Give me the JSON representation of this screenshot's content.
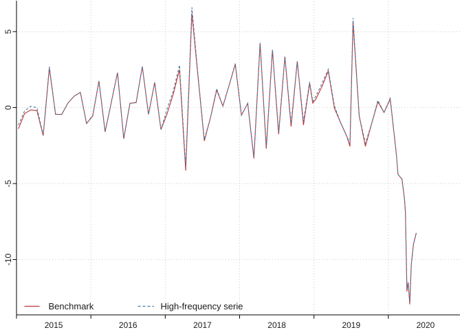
{
  "figure": {
    "background": "#ffffff",
    "title": ""
  },
  "chart_data": {
    "type": "line",
    "title": "",
    "xlabel": "",
    "ylabel": "",
    "grid": "dotted",
    "grid_color": "#c6c6c6",
    "axis_color": "#000000",
    "xlim": [
      2015,
      2020.99
    ],
    "ylim": [
      -13.64,
      7.08
    ],
    "x_start_year": 2015,
    "x_month_offset": 0.3,
    "x_ticks": [
      2015,
      2016,
      2017,
      2018,
      2019,
      2020
    ],
    "x_tick_labels": [
      "2015",
      "2016",
      "2017",
      "2018",
      "2019",
      "2020"
    ],
    "x_label_position": "mid-year",
    "y_ticks": [
      5,
      0,
      -5,
      -10
    ],
    "y_tick_labels": [
      "5",
      "0",
      "-5",
      "-10"
    ],
    "legend_position": "bottom",
    "series": [
      {
        "name": "Benchmark",
        "color": "#c03333",
        "style": "solid",
        "frequency": "monthly",
        "start": "2015-01",
        "points": [
          [
            0,
            -1.4
          ],
          [
            1,
            -0.4
          ],
          [
            2,
            -0.15
          ],
          [
            3,
            -0.2
          ],
          [
            4,
            -1.85
          ],
          [
            5,
            2.6
          ],
          [
            6,
            -0.45
          ],
          [
            7,
            -0.45
          ],
          [
            8,
            0.3
          ],
          [
            9,
            0.75
          ],
          [
            10,
            1.0
          ],
          [
            11,
            -1.05
          ],
          [
            12,
            -0.55
          ],
          [
            13,
            1.75
          ],
          [
            14,
            -1.6
          ],
          [
            15,
            0.35
          ],
          [
            16,
            2.3
          ],
          [
            17,
            -2.05
          ],
          [
            18,
            0.28
          ],
          [
            19,
            0.33
          ],
          [
            20,
            2.7
          ],
          [
            21,
            -0.45
          ],
          [
            22,
            1.65
          ],
          [
            23,
            -1.45
          ],
          [
            24,
            -0.4
          ],
          [
            25,
            0.9
          ],
          [
            26,
            2.5
          ],
          [
            27,
            -4.15
          ],
          [
            28,
            6.2
          ],
          [
            29,
            2.0
          ],
          [
            30,
            -2.2
          ],
          [
            31,
            -0.65
          ],
          [
            32,
            1.15
          ],
          [
            33,
            0.1
          ],
          [
            34,
            1.45
          ],
          [
            35,
            2.85
          ],
          [
            36,
            -0.5
          ],
          [
            37,
            0.28
          ],
          [
            38,
            -3.35
          ],
          [
            39,
            4.25
          ],
          [
            40,
            -2.7
          ],
          [
            41,
            3.8
          ],
          [
            42,
            -1.75
          ],
          [
            43,
            3.35
          ],
          [
            44,
            -1.25
          ],
          [
            45,
            3.05
          ],
          [
            46,
            -1.15
          ],
          [
            47,
            1.6
          ],
          [
            47.5,
            0.3
          ],
          [
            48,
            0.55
          ],
          [
            49,
            1.4
          ],
          [
            50,
            2.4
          ],
          [
            51,
            -0.05
          ],
          [
            52,
            -1.0
          ],
          [
            53,
            -1.9
          ],
          [
            53.5,
            -2.55
          ],
          [
            54,
            5.6
          ],
          [
            55,
            -0.55
          ],
          [
            56,
            -2.55
          ],
          [
            57,
            -1.05
          ],
          [
            58,
            0.38
          ],
          [
            59,
            -0.32
          ],
          [
            60,
            0.55
          ],
          [
            61,
            -3.1
          ],
          [
            61.25,
            -4.4
          ],
          [
            61.9,
            -4.7
          ],
          [
            62.3,
            -6.0
          ],
          [
            62.45,
            -6.9
          ],
          [
            62.7,
            -12.1
          ],
          [
            62.9,
            -11.5
          ],
          [
            63.15,
            -12.95
          ],
          [
            63.4,
            -10.3
          ],
          [
            63.75,
            -9.0
          ],
          [
            64.2,
            -8.25
          ]
        ]
      },
      {
        "name": "High-frequency serie",
        "color": "#447ba6",
        "style": "dashed",
        "frequency": "monthly",
        "start": "2015-01",
        "points": [
          [
            0,
            -1.15
          ],
          [
            1,
            -0.22
          ],
          [
            2,
            0.08
          ],
          [
            3,
            0.0
          ],
          [
            4,
            -1.8
          ],
          [
            5,
            2.7
          ],
          [
            6,
            -0.45
          ],
          [
            7,
            -0.45
          ],
          [
            8,
            0.3
          ],
          [
            9,
            0.75
          ],
          [
            10,
            1.0
          ],
          [
            11,
            -1.05
          ],
          [
            12,
            -0.5
          ],
          [
            13,
            1.75
          ],
          [
            14,
            -1.6
          ],
          [
            15,
            0.35
          ],
          [
            16,
            2.3
          ],
          [
            17,
            -2.05
          ],
          [
            18,
            0.28
          ],
          [
            19,
            0.33
          ],
          [
            20,
            2.7
          ],
          [
            21,
            -0.45
          ],
          [
            22,
            1.65
          ],
          [
            23,
            -1.45
          ],
          [
            24,
            -0.08
          ],
          [
            25,
            1.1
          ],
          [
            26,
            2.8
          ],
          [
            27,
            -3.9
          ],
          [
            28,
            6.6
          ],
          [
            29,
            2.1
          ],
          [
            30,
            -2.1
          ],
          [
            31,
            -0.65
          ],
          [
            32,
            1.25
          ],
          [
            33,
            0.1
          ],
          [
            34,
            1.45
          ],
          [
            35,
            2.9
          ],
          [
            36,
            -0.5
          ],
          [
            37,
            0.28
          ],
          [
            38,
            -3.25
          ],
          [
            39,
            4.25
          ],
          [
            40,
            -2.55
          ],
          [
            41,
            3.8
          ],
          [
            42,
            -1.63
          ],
          [
            43,
            3.35
          ],
          [
            44,
            -1.05
          ],
          [
            45,
            3.05
          ],
          [
            46,
            -0.92
          ],
          [
            47,
            1.7
          ],
          [
            47.5,
            0.4
          ],
          [
            48,
            0.75
          ],
          [
            49,
            1.6
          ],
          [
            50,
            2.52
          ],
          [
            51,
            0.1
          ],
          [
            52,
            -1.0
          ],
          [
            53,
            -1.9
          ],
          [
            53.5,
            -2.35
          ],
          [
            54,
            5.9
          ],
          [
            55,
            -0.55
          ],
          [
            56,
            -2.35
          ],
          [
            57,
            -1.05
          ],
          [
            58,
            0.48
          ],
          [
            59,
            -0.32
          ],
          [
            60,
            0.62
          ],
          [
            61,
            -3.1
          ],
          [
            61.25,
            -4.4
          ],
          [
            61.9,
            -4.7
          ],
          [
            62.3,
            -6.0
          ],
          [
            62.45,
            -6.9
          ],
          [
            62.7,
            -11.95
          ],
          [
            62.9,
            -11.5
          ],
          [
            63.15,
            -12.8
          ],
          [
            63.4,
            -10.3
          ],
          [
            63.75,
            -9.0
          ],
          [
            64.2,
            -8.25
          ]
        ]
      }
    ]
  },
  "legend": {
    "items": [
      {
        "label": "Benchmark",
        "swatch": "solid-line"
      },
      {
        "label": "High-frequency serie",
        "swatch": "dashed-line"
      }
    ]
  }
}
